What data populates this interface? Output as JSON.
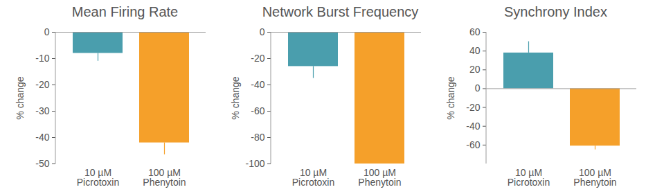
{
  "chart_data": [
    {
      "type": "bar",
      "title": "Mean Firing Rate",
      "ylabel": "% change",
      "categories": [
        "10 µM\nPicrotoxin",
        "100 µM\nPhenytoin"
      ],
      "values": [
        -8,
        -42
      ],
      "errors": [
        3,
        4.5
      ],
      "colors": [
        "#4a9ead",
        "#f5a02a"
      ],
      "ylim": [
        -50,
        0
      ],
      "yticks": [
        0,
        -10,
        -20,
        -30,
        -40,
        -50
      ]
    },
    {
      "type": "bar",
      "title": "Network Burst Frequency",
      "ylabel": "% change",
      "categories": [
        "10 µM\nPicrotoxin",
        "100 µM\nPhenytoin"
      ],
      "values": [
        -26,
        -100
      ],
      "errors": [
        9,
        0
      ],
      "colors": [
        "#4a9ead",
        "#f5a02a"
      ],
      "ylim": [
        -100,
        0
      ],
      "yticks": [
        0,
        -20,
        -40,
        -60,
        -80,
        -100
      ]
    },
    {
      "type": "bar",
      "title": "Synchrony Index",
      "ylabel": "% change",
      "categories": [
        "10 µM\nPicrotoxin",
        "100 µM\nPhenytoin"
      ],
      "values": [
        38,
        -61
      ],
      "errors": [
        12,
        4
      ],
      "colors": [
        "#4a9ead",
        "#f5a02a"
      ],
      "ylim": [
        -80,
        60
      ],
      "yticks": [
        60,
        40,
        20,
        0,
        -20,
        -40,
        -60
      ]
    }
  ]
}
